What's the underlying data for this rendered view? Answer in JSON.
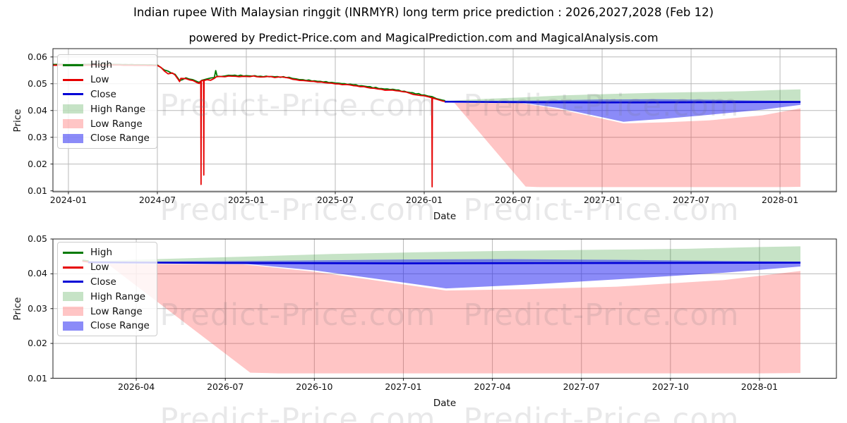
{
  "chart_data": {
    "type": "line",
    "title": "Indian rupee With Malaysian ringgit (INRMYR) long term price prediction : 2026,2027,2028 (Feb 12)",
    "subtitle": "powered by Predict-Price.com and MagicalPrediction.com and MagicalAnalysis.com",
    "watermark_text": "Predict-Price.com",
    "legend": [
      {
        "label": "High",
        "kind": "line",
        "color_key": "high_line"
      },
      {
        "label": "Low",
        "kind": "line",
        "color_key": "low_line"
      },
      {
        "label": "Close",
        "kind": "line",
        "color_key": "close_line"
      },
      {
        "label": "High Range",
        "kind": "patch",
        "color_key": "high_band",
        "opacity_key": "high_band_opacity"
      },
      {
        "label": "Low Range",
        "kind": "patch",
        "color_key": "low_band",
        "opacity_key": "low_band_opacity"
      },
      {
        "label": "Close Range",
        "kind": "patch",
        "color_key": "close_band",
        "opacity_key": "close_band_opacity"
      }
    ],
    "history": {
      "low": [
        [
          2023.916,
          0.0569
        ],
        [
          2023.97,
          0.057
        ],
        [
          2024.03,
          0.0571
        ],
        [
          2024.09,
          0.0569
        ],
        [
          2024.15,
          0.057
        ],
        [
          2024.21,
          0.0569
        ],
        [
          2024.27,
          0.057
        ],
        [
          2024.33,
          0.0569
        ],
        [
          2024.39,
          0.0569
        ],
        [
          2024.45,
          0.0568
        ],
        [
          2024.5,
          0.0568
        ],
        [
          2024.52,
          0.0561
        ],
        [
          2024.54,
          0.0547
        ],
        [
          2024.56,
          0.0537
        ],
        [
          2024.585,
          0.054
        ],
        [
          2024.6,
          0.0532
        ],
        [
          2024.615,
          0.0518
        ],
        [
          2024.625,
          0.0508
        ],
        [
          2024.632,
          0.052
        ],
        [
          2024.66,
          0.0519
        ],
        [
          2024.7,
          0.0512
        ],
        [
          2024.72,
          0.0505
        ],
        [
          2024.735,
          0.0501
        ],
        [
          2024.744,
          0.051
        ],
        [
          2024.7455,
          0.0124
        ],
        [
          2024.747,
          0.051
        ],
        [
          2024.755,
          0.0513
        ],
        [
          2024.7595,
          0.0512
        ],
        [
          2024.761,
          0.0159
        ],
        [
          2024.7625,
          0.0512
        ],
        [
          2024.78,
          0.0515
        ],
        [
          2024.8,
          0.0513
        ],
        [
          2024.82,
          0.052
        ],
        [
          2024.832,
          0.0526
        ],
        [
          2024.85,
          0.0527
        ],
        [
          2024.88,
          0.0526
        ],
        [
          2024.92,
          0.0528
        ],
        [
          2024.96,
          0.0526
        ],
        [
          2025.0,
          0.0527
        ],
        [
          2025.04,
          0.0529
        ],
        [
          2025.08,
          0.0525
        ],
        [
          2025.12,
          0.0527
        ],
        [
          2025.16,
          0.0523
        ],
        [
          2025.2,
          0.0525
        ],
        [
          2025.24,
          0.0521
        ],
        [
          2025.28,
          0.0515
        ],
        [
          2025.32,
          0.0512
        ],
        [
          2025.36,
          0.0509
        ],
        [
          2025.4,
          0.0506
        ],
        [
          2025.44,
          0.0504
        ],
        [
          2025.48,
          0.0502
        ],
        [
          2025.52,
          0.0499
        ],
        [
          2025.56,
          0.0497
        ],
        [
          2025.6,
          0.0493
        ],
        [
          2025.64,
          0.0489
        ],
        [
          2025.68,
          0.0486
        ],
        [
          2025.72,
          0.0483
        ],
        [
          2025.76,
          0.0479
        ],
        [
          2025.8,
          0.0476
        ],
        [
          2025.84,
          0.0474
        ],
        [
          2025.88,
          0.047
        ],
        [
          2025.92,
          0.0464
        ],
        [
          2025.96,
          0.0458
        ],
        [
          2026.0,
          0.0455
        ],
        [
          2026.03,
          0.045
        ],
        [
          2026.043,
          0.0447
        ],
        [
          2026.0445,
          0.0115
        ],
        [
          2026.046,
          0.0447
        ],
        [
          2026.06,
          0.0444
        ],
        [
          2026.08,
          0.044
        ],
        [
          2026.1,
          0.0436
        ],
        [
          2026.115,
          0.0434
        ]
      ],
      "high": [
        [
          2023.916,
          0.0572
        ],
        [
          2024.03,
          0.0573
        ],
        [
          2024.15,
          0.0572
        ],
        [
          2024.27,
          0.0572
        ],
        [
          2024.39,
          0.0571
        ],
        [
          2024.5,
          0.057
        ],
        [
          2024.54,
          0.0551
        ],
        [
          2024.6,
          0.0535
        ],
        [
          2024.625,
          0.0512
        ],
        [
          2024.66,
          0.0522
        ],
        [
          2024.7,
          0.0515
        ],
        [
          2024.72,
          0.0509
        ],
        [
          2024.735,
          0.0505
        ],
        [
          2024.75,
          0.0513
        ],
        [
          2024.78,
          0.0518
        ],
        [
          2024.82,
          0.0523
        ],
        [
          2024.828,
          0.0549
        ],
        [
          2024.836,
          0.0528
        ],
        [
          2024.88,
          0.0529
        ],
        [
          2024.92,
          0.0531
        ],
        [
          2025.0,
          0.053
        ],
        [
          2025.08,
          0.0528
        ],
        [
          2025.16,
          0.0526
        ],
        [
          2025.24,
          0.0524
        ],
        [
          2025.28,
          0.0518
        ],
        [
          2025.32,
          0.0515
        ],
        [
          2025.4,
          0.0509
        ],
        [
          2025.48,
          0.0505
        ],
        [
          2025.52,
          0.0502
        ],
        [
          2025.6,
          0.0496
        ],
        [
          2025.68,
          0.0489
        ],
        [
          2025.76,
          0.0482
        ],
        [
          2025.84,
          0.0477
        ],
        [
          2025.92,
          0.0467
        ],
        [
          2026.0,
          0.0458
        ],
        [
          2026.043,
          0.0452
        ],
        [
          2026.07,
          0.0444
        ],
        [
          2026.1,
          0.0439
        ],
        [
          2026.115,
          0.0437
        ]
      ]
    },
    "prediction": {
      "close": [
        [
          2026.115,
          0.0433
        ],
        [
          2026.5,
          0.0431
        ],
        [
          2027.0,
          0.043
        ],
        [
          2027.6,
          0.0431
        ],
        [
          2028.115,
          0.0432
        ]
      ],
      "close_top": [
        [
          2026.115,
          0.0434
        ],
        [
          2026.4,
          0.0436
        ],
        [
          2026.7,
          0.0438
        ],
        [
          2027.0,
          0.0441
        ],
        [
          2027.3,
          0.0442
        ],
        [
          2027.6,
          0.044
        ],
        [
          2027.9,
          0.0437
        ],
        [
          2028.115,
          0.0435
        ]
      ],
      "close_bottom": [
        [
          2026.115,
          0.0431
        ],
        [
          2026.55,
          0.0429
        ],
        [
          2026.75,
          0.041
        ],
        [
          2026.95,
          0.0382
        ],
        [
          2027.12,
          0.0358
        ],
        [
          2027.35,
          0.0369
        ],
        [
          2027.6,
          0.0384
        ],
        [
          2027.9,
          0.0403
        ],
        [
          2028.115,
          0.0421
        ]
      ],
      "high_top": [
        [
          2026.115,
          0.0436
        ],
        [
          2026.3,
          0.0442
        ],
        [
          2026.55,
          0.0449
        ],
        [
          2026.8,
          0.0457
        ],
        [
          2027.05,
          0.0462
        ],
        [
          2027.3,
          0.0466
        ],
        [
          2027.55,
          0.0469
        ],
        [
          2027.8,
          0.0472
        ],
        [
          2028.0,
          0.0477
        ],
        [
          2028.115,
          0.0479
        ]
      ],
      "low_top": [
        [
          2026.115,
          0.0429
        ],
        [
          2026.55,
          0.0427
        ],
        [
          2026.75,
          0.0406
        ],
        [
          2026.95,
          0.0377
        ],
        [
          2027.12,
          0.0352
        ],
        [
          2027.35,
          0.0356
        ],
        [
          2027.6,
          0.0363
        ],
        [
          2027.9,
          0.0382
        ],
        [
          2028.115,
          0.0408
        ]
      ],
      "low_bottom": [
        [
          2026.115,
          0.043
        ],
        [
          2026.17,
          0.0428
        ],
        [
          2026.57,
          0.0116
        ],
        [
          2026.65,
          0.0114
        ],
        [
          2028.0,
          0.0114
        ],
        [
          2028.115,
          0.0115
        ]
      ]
    },
    "panels": [
      {
        "id": "top",
        "xlim": [
          2023.913,
          2028.317
        ],
        "ylim": [
          0.00966,
          0.0631
        ],
        "xlabel": "Date",
        "ylabel": "Price",
        "show_history": true,
        "xticks": [
          {
            "v": 2024.0,
            "label": "2024-01"
          },
          {
            "v": 2024.5,
            "label": "2024-07"
          },
          {
            "v": 2025.0,
            "label": "2025-01"
          },
          {
            "v": 2025.5,
            "label": "2025-07"
          },
          {
            "v": 2026.0,
            "label": "2026-01"
          },
          {
            "v": 2026.5,
            "label": "2026-07"
          },
          {
            "v": 2027.0,
            "label": "2027-01"
          },
          {
            "v": 2027.5,
            "label": "2027-07"
          },
          {
            "v": 2028.0,
            "label": "2028-01"
          }
        ],
        "yticks": [
          {
            "v": 0.06,
            "label": "0.06"
          },
          {
            "v": 0.05,
            "label": "0.05"
          },
          {
            "v": 0.04,
            "label": "0.04"
          },
          {
            "v": 0.03,
            "label": "0.03"
          },
          {
            "v": 0.02,
            "label": "0.02"
          },
          {
            "v": 0.01,
            "label": "0.01"
          }
        ]
      },
      {
        "id": "bottom",
        "xlim": [
          2026.016,
          2028.216
        ],
        "ylim": [
          0.01,
          0.05
        ],
        "xlabel": "Date",
        "ylabel": "Price",
        "show_history": false,
        "xticks": [
          {
            "v": 2026.25,
            "label": "2026-04"
          },
          {
            "v": 2026.5,
            "label": "2026-07"
          },
          {
            "v": 2026.75,
            "label": "2026-10"
          },
          {
            "v": 2027.0,
            "label": "2027-01"
          },
          {
            "v": 2027.25,
            "label": "2027-04"
          },
          {
            "v": 2027.5,
            "label": "2027-07"
          },
          {
            "v": 2027.75,
            "label": "2027-10"
          },
          {
            "v": 2028.0,
            "label": "2028-01"
          }
        ],
        "yticks": [
          {
            "v": 0.05,
            "label": "0.05"
          },
          {
            "v": 0.04,
            "label": "0.04"
          },
          {
            "v": 0.03,
            "label": "0.03"
          },
          {
            "v": 0.02,
            "label": "0.02"
          },
          {
            "v": 0.01,
            "label": "0.01"
          }
        ]
      }
    ]
  },
  "colors": {
    "high_line": "#007a00",
    "low_line": "#e60000",
    "close_line": "#0000d6",
    "high_band": "#1d8f1d",
    "high_band_opacity": 0.25,
    "low_band": "#ff2a2a",
    "low_band_opacity": 0.27,
    "close_band": "#2121f2",
    "close_band_opacity": 0.52,
    "grid": "#b9b9b9",
    "spine": "#202020",
    "text": "#111111",
    "watermark": "rgba(120,120,125,0.17)"
  }
}
